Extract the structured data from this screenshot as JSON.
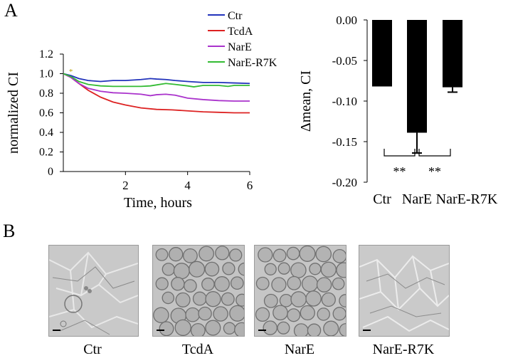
{
  "panels": {
    "a_label": "A",
    "b_label": "B"
  },
  "chart_data": [
    {
      "type": "line",
      "xlabel": "Time, hours",
      "ylabel": "normalized CI",
      "xlim": [
        0,
        6
      ],
      "ylim": [
        0,
        1.2
      ],
      "x_ticks": [
        "2",
        "4",
        "6"
      ],
      "x_tick_values": [
        2,
        4,
        6
      ],
      "y_ticks": [
        "0",
        "0.2",
        "0.4",
        "0.6",
        "0.8",
        "1.0",
        "1.2"
      ],
      "y_tick_values": [
        0,
        0.2,
        0.4,
        0.6,
        0.8,
        1.0,
        1.2
      ],
      "legend_position": "top-right",
      "series": [
        {
          "name": "Ctr",
          "color": "#2233bb",
          "x": [
            0,
            0.25,
            0.5,
            0.8,
            1.2,
            1.6,
            2.0,
            2.5,
            2.8,
            3.0,
            3.3,
            3.6,
            4.0,
            4.5,
            5.0,
            5.5,
            6.0
          ],
          "y": [
            1.0,
            0.98,
            0.95,
            0.93,
            0.92,
            0.93,
            0.93,
            0.94,
            0.95,
            0.945,
            0.94,
            0.93,
            0.92,
            0.91,
            0.91,
            0.905,
            0.9
          ]
        },
        {
          "name": "TcdA",
          "color": "#dd2222",
          "x": [
            0,
            0.25,
            0.5,
            0.8,
            1.2,
            1.6,
            2.0,
            2.5,
            3.0,
            3.5,
            4.0,
            4.5,
            5.0,
            5.5,
            6.0
          ],
          "y": [
            1.0,
            0.96,
            0.9,
            0.83,
            0.76,
            0.71,
            0.68,
            0.65,
            0.635,
            0.63,
            0.62,
            0.61,
            0.605,
            0.6,
            0.6
          ]
        },
        {
          "name": "NarE",
          "color": "#aa33cc",
          "x": [
            0,
            0.25,
            0.5,
            0.8,
            1.2,
            1.6,
            2.0,
            2.5,
            2.8,
            3.0,
            3.3,
            3.6,
            4.0,
            4.5,
            5.0,
            5.5,
            6.0
          ],
          "y": [
            1.0,
            0.96,
            0.9,
            0.85,
            0.82,
            0.805,
            0.8,
            0.79,
            0.775,
            0.785,
            0.79,
            0.78,
            0.75,
            0.735,
            0.725,
            0.72,
            0.72
          ]
        },
        {
          "name": "NarE-R7K",
          "color": "#33bb33",
          "x": [
            0,
            0.25,
            0.5,
            0.8,
            1.2,
            1.6,
            2.0,
            2.5,
            2.8,
            3.0,
            3.3,
            3.6,
            4.0,
            4.2,
            4.5,
            5.0,
            5.3,
            5.5,
            6.0
          ],
          "y": [
            1.0,
            0.97,
            0.92,
            0.89,
            0.875,
            0.87,
            0.87,
            0.87,
            0.875,
            0.885,
            0.9,
            0.89,
            0.875,
            0.865,
            0.88,
            0.88,
            0.87,
            0.88,
            0.88
          ]
        }
      ],
      "annotation": {
        "text": "*",
        "x": 0.25,
        "y": 1.04,
        "color": "#b8a000"
      }
    },
    {
      "type": "bar",
      "ylabel": "Δmean, CI",
      "ylim": [
        -0.2,
        0
      ],
      "y_ticks": [
        "0.00",
        "-0.05",
        "-0.10",
        "-0.15",
        "-0.20"
      ],
      "y_tick_values": [
        0,
        -0.05,
        -0.1,
        -0.15,
        -0.2
      ],
      "categories": [
        "Ctr",
        "NarE",
        "NarE-R7K"
      ],
      "values": [
        -0.082,
        -0.139,
        -0.083
      ],
      "errors": [
        0.0,
        0.025,
        0.006
      ],
      "color": "#000000",
      "significance": [
        {
          "between": [
            "Ctr",
            "NarE"
          ],
          "label": "**"
        },
        {
          "between": [
            "NarE",
            "NarE-R7K"
          ],
          "label": "**"
        }
      ]
    }
  ],
  "micrographs": [
    {
      "label": "Ctr"
    },
    {
      "label": "TcdA"
    },
    {
      "label": "NarE"
    },
    {
      "label": "NarE-R7K"
    }
  ]
}
